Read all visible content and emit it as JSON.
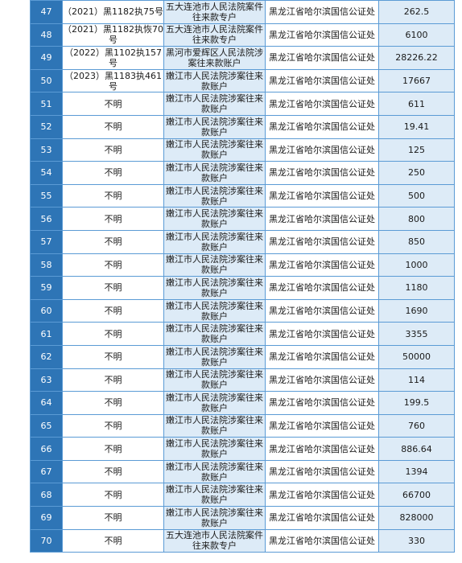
{
  "rows": [
    {
      "no": "47",
      "case": "（2021）黑1182执75号",
      "court": "五大连池市人民法院案件往来款专户",
      "payee": "黑龙江省哈尔滨国信公证处",
      "amount": "262.5"
    },
    {
      "no": "48",
      "case": "（2021）黑1182执恢70号",
      "court": "五大连池市人民法院案件往来款专户",
      "payee": "黑龙江省哈尔滨国信公证处",
      "amount": "6100"
    },
    {
      "no": "49",
      "case": "（2022）黑1102执157号",
      "court": "黑河市爱辉区人民法院涉案往来款账户",
      "payee": "黑龙江省哈尔滨国信公证处",
      "amount": "28226.22"
    },
    {
      "no": "50",
      "case": "（2023）黑1183执461号",
      "court": "嫩江市人民法院涉案往来款账户",
      "payee": "黑龙江省哈尔滨国信公证处",
      "amount": "17667"
    },
    {
      "no": "51",
      "case": "不明",
      "court": "嫩江市人民法院涉案往来款账户",
      "payee": "黑龙江省哈尔滨国信公证处",
      "amount": "611"
    },
    {
      "no": "52",
      "case": "不明",
      "court": "嫩江市人民法院涉案往来款账户",
      "payee": "黑龙江省哈尔滨国信公证处",
      "amount": "19.41"
    },
    {
      "no": "53",
      "case": "不明",
      "court": "嫩江市人民法院涉案往来款账户",
      "payee": "黑龙江省哈尔滨国信公证处",
      "amount": "125"
    },
    {
      "no": "54",
      "case": "不明",
      "court": "嫩江市人民法院涉案往来款账户",
      "payee": "黑龙江省哈尔滨国信公证处",
      "amount": "250"
    },
    {
      "no": "55",
      "case": "不明",
      "court": "嫩江市人民法院涉案往来款账户",
      "payee": "黑龙江省哈尔滨国信公证处",
      "amount": "500"
    },
    {
      "no": "56",
      "case": "不明",
      "court": "嫩江市人民法院涉案往来款账户",
      "payee": "黑龙江省哈尔滨国信公证处",
      "amount": "800"
    },
    {
      "no": "57",
      "case": "不明",
      "court": "嫩江市人民法院涉案往来款账户",
      "payee": "黑龙江省哈尔滨国信公证处",
      "amount": "850"
    },
    {
      "no": "58",
      "case": "不明",
      "court": "嫩江市人民法院涉案往来款账户",
      "payee": "黑龙江省哈尔滨国信公证处",
      "amount": "1000"
    },
    {
      "no": "59",
      "case": "不明",
      "court": "嫩江市人民法院涉案往来款账户",
      "payee": "黑龙江省哈尔滨国信公证处",
      "amount": "1180"
    },
    {
      "no": "60",
      "case": "不明",
      "court": "嫩江市人民法院涉案往来款账户",
      "payee": "黑龙江省哈尔滨国信公证处",
      "amount": "1690"
    },
    {
      "no": "61",
      "case": "不明",
      "court": "嫩江市人民法院涉案往来款账户",
      "payee": "黑龙江省哈尔滨国信公证处",
      "amount": "3355"
    },
    {
      "no": "62",
      "case": "不明",
      "court": "嫩江市人民法院涉案往来款账户",
      "payee": "黑龙江省哈尔滨国信公证处",
      "amount": "50000"
    },
    {
      "no": "63",
      "case": "不明",
      "court": "嫩江市人民法院涉案往来款账户",
      "payee": "黑龙江省哈尔滨国信公证处",
      "amount": "114"
    },
    {
      "no": "64",
      "case": "不明",
      "court": "嫩江市人民法院涉案往来款账户",
      "payee": "黑龙江省哈尔滨国信公证处",
      "amount": "199.5"
    },
    {
      "no": "65",
      "case": "不明",
      "court": "嫩江市人民法院涉案往来款账户",
      "payee": "黑龙江省哈尔滨国信公证处",
      "amount": "760"
    },
    {
      "no": "66",
      "case": "不明",
      "court": "嫩江市人民法院涉案往来款账户",
      "payee": "黑龙江省哈尔滨国信公证处",
      "amount": "886.64"
    },
    {
      "no": "67",
      "case": "不明",
      "court": "嫩江市人民法院涉案往来款账户",
      "payee": "黑龙江省哈尔滨国信公证处",
      "amount": "1394"
    },
    {
      "no": "68",
      "case": "不明",
      "court": "嫩江市人民法院涉案往来款账户",
      "payee": "黑龙江省哈尔滨国信公证处",
      "amount": "66700"
    },
    {
      "no": "69",
      "case": "不明",
      "court": "嫩江市人民法院涉案往来款账户",
      "payee": "黑龙江省哈尔滨国信公证处",
      "amount": "828000"
    },
    {
      "no": "70",
      "case": "不明",
      "court": "五大连池市人民法院案件往来款专户",
      "payee": "黑龙江省哈尔滨国信公证处",
      "amount": "330"
    }
  ],
  "colors": {
    "number_col": "#2e75b6",
    "band": "#ddebf7",
    "border": "#5b9bd5"
  }
}
